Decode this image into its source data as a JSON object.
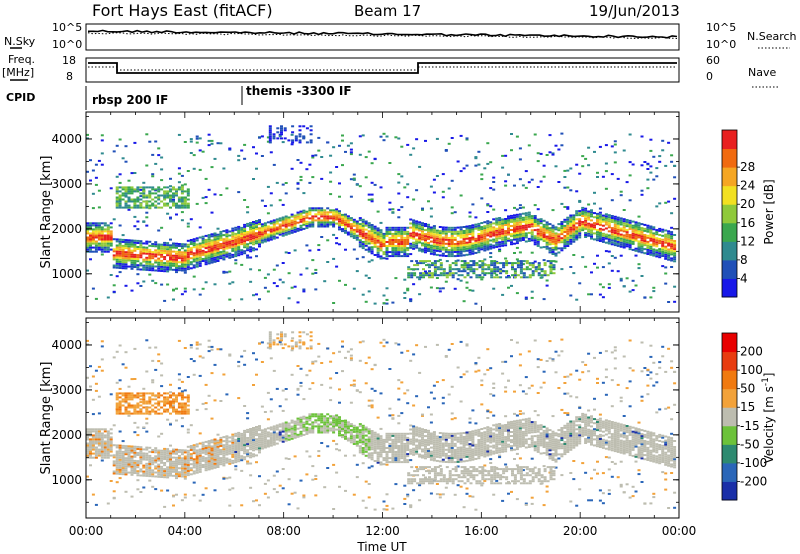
{
  "header": {
    "title": "Fort Hays East (fitACF)",
    "beam": "Beam 17",
    "date": "19/Jun/2013"
  },
  "panels": {
    "nsky_label": "N.Sky",
    "nsearch_label": "N.Search",
    "nsky_ticks": [
      "10^5",
      "10^0"
    ],
    "nsearch_ticks": [
      "10^5",
      "10^0"
    ],
    "freq_label": "Freq.",
    "freq_unit": "[MHz]",
    "freq_ticks": [
      "18",
      "8"
    ],
    "nave_label": "Nave",
    "nave_ticks": [
      "60",
      "0"
    ],
    "cpid_label": "CPID",
    "cpid_segments": [
      "rbsp 200 IF",
      "themis -3300 IF"
    ]
  },
  "chart_data": [
    {
      "type": "heatmap",
      "name": "power-panel",
      "ylabel": "Slant Range [km]",
      "yticks": [
        "1000",
        "2000",
        "3000",
        "4000"
      ],
      "xticks": [
        "00:00",
        "04:00",
        "08:00",
        "12:00",
        "16:00",
        "20:00",
        "00:00"
      ],
      "ylim": [
        150,
        4600
      ],
      "xlim_hours": [
        0,
        24
      ],
      "colorbar": {
        "label": "Power [dB]",
        "ticks": [
          "4",
          "8",
          "12",
          "16",
          "20",
          "24",
          "28"
        ],
        "colors": [
          "#1818e8",
          "#2050b8",
          "#2f8a8f",
          "#3aa74e",
          "#8fc93a",
          "#f2e021",
          "#f5a623",
          "#f06a10",
          "#e82020"
        ]
      }
    },
    {
      "type": "heatmap",
      "name": "velocity-panel",
      "ylabel": "Slant Range [km]",
      "yticks": [
        "1000",
        "2000",
        "3000",
        "4000"
      ],
      "xticks": [
        "00:00",
        "04:00",
        "08:00",
        "12:00",
        "16:00",
        "20:00",
        "00:00"
      ],
      "xlabel": "Time UT",
      "ylim": [
        150,
        4600
      ],
      "xlim_hours": [
        0,
        24
      ],
      "colorbar": {
        "label": "Velocity [m s",
        "label_sup": "-1",
        "label_end": "]",
        "ticks": [
          "200",
          "100",
          "50",
          "15",
          "-15",
          "-50",
          "-100",
          "-200"
        ],
        "colors": [
          "#1a2fa8",
          "#2a66b8",
          "#2d8a70",
          "#6cc23a",
          "#bdbdb0",
          "#f2a23a",
          "#f07a10",
          "#e83c10",
          "#e80000"
        ]
      }
    }
  ]
}
